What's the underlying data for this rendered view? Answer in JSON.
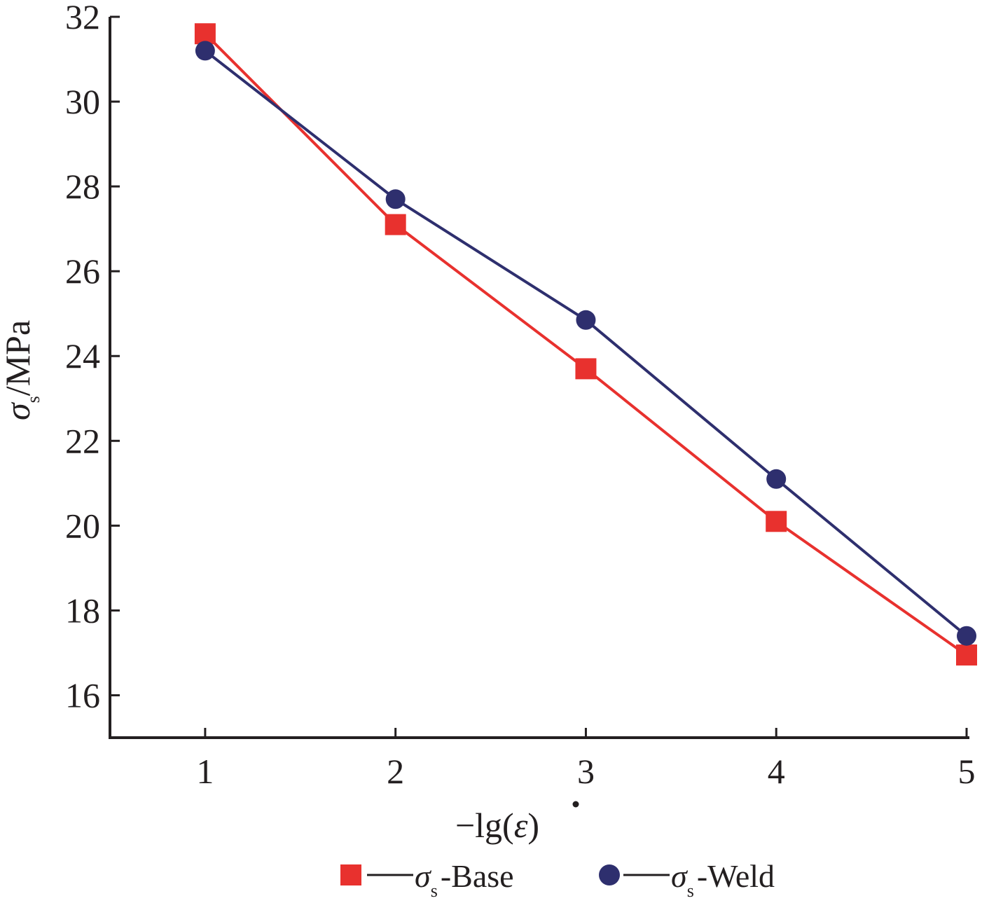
{
  "chart_data": {
    "type": "line",
    "x": [
      1,
      2,
      3,
      4,
      5
    ],
    "xlim": [
      0.5,
      5
    ],
    "ylim": [
      15,
      32
    ],
    "xticks": [
      "1",
      "2",
      "3",
      "4",
      "5"
    ],
    "yticks": [
      "16",
      "18",
      "20",
      "22",
      "24",
      "26",
      "28",
      "30",
      "32"
    ],
    "xlabel": "−lg(ε̇)",
    "ylabel": "σs/MPa",
    "grid": false,
    "legend_position": "bottom",
    "series": [
      {
        "name": "σs-Base",
        "symbol": "σ",
        "subscript": "s",
        "suffix": "-Base",
        "marker": "square",
        "color": "#e8312e",
        "values": [
          31.6,
          27.1,
          23.7,
          20.1,
          16.95
        ]
      },
      {
        "name": "σs-Weld",
        "symbol": "σ",
        "subscript": "s",
        "suffix": "-Weld",
        "marker": "circle",
        "color": "#2e2f6e",
        "values": [
          31.2,
          27.7,
          24.85,
          21.1,
          17.4
        ]
      }
    ]
  },
  "axis_text": {
    "xlabel_prefix": "−lg(",
    "xlabel_symbol": "ε",
    "xlabel_suffix": ")",
    "ylabel_symbol": "σ",
    "ylabel_subscript": "s",
    "ylabel_unit": "/MPa"
  },
  "colors": {
    "axis": "#231f20"
  }
}
